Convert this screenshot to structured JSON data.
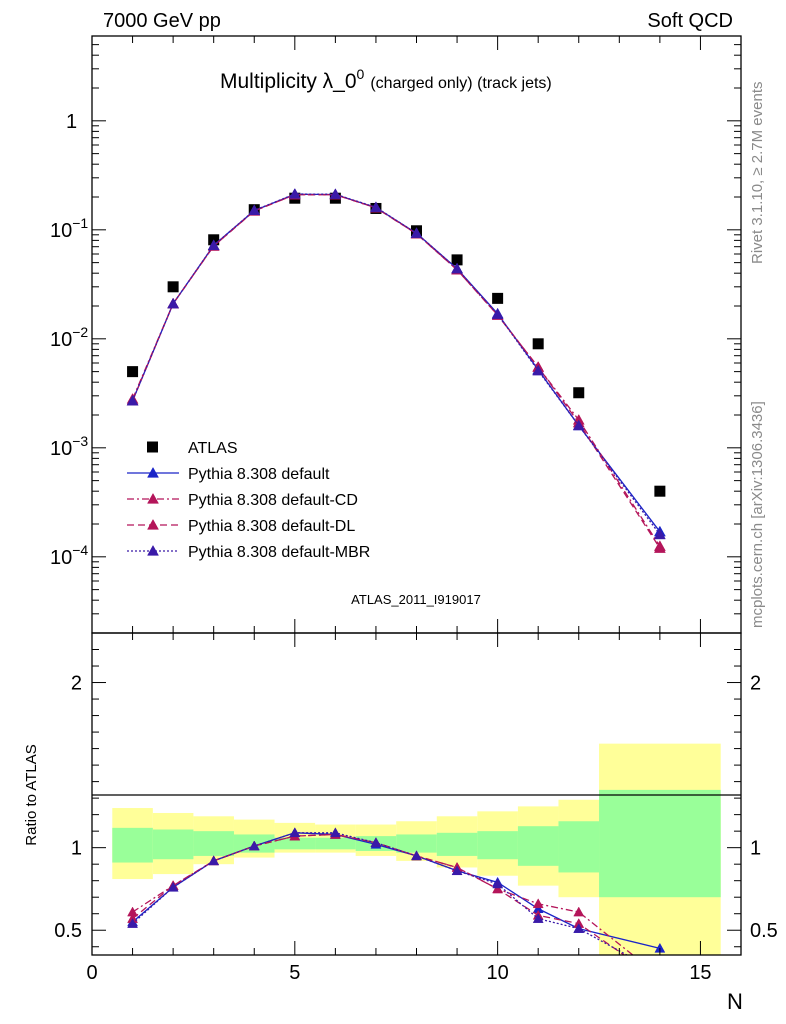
{
  "header": {
    "energy_label": "7000 GeV pp",
    "process_label": "Soft QCD"
  },
  "side": {
    "rivet_label": "Rivet 3.1.10, ≥ 2.7M events",
    "source_label": "mcplots.cern.ch [arXiv:1306.3436]"
  },
  "colors": {
    "data": "#000000",
    "default": "#1a24c8",
    "cd": "#b4155a",
    "dl": "#b4155a",
    "mbr": "#3a1aa8",
    "band_yellow": "#ffff99",
    "band_green": "#99ff99"
  },
  "chart_data": [
    {
      "type": "scatter",
      "title": "Multiplicity λ_0",
      "title_superscript": "0",
      "title_suffix": "(charged only) (track jets)",
      "analysis_label": "ATLAS_2011_I919017",
      "xlim": [
        0,
        16
      ],
      "ylim": [
        2e-05,
        6
      ],
      "yscale": "log",
      "y_ticks": [
        {
          "value": 0.0001,
          "base": "10",
          "exp": "−4"
        },
        {
          "value": 0.001,
          "base": "10",
          "exp": "−3"
        },
        {
          "value": 0.01,
          "base": "10",
          "exp": "−2"
        },
        {
          "value": 0.1,
          "base": "10",
          "exp": "−1"
        },
        {
          "value": 1,
          "base": "1",
          "exp": ""
        }
      ],
      "legend_position": "bottom-left",
      "series": [
        {
          "name": "ATLAS",
          "style": "data",
          "x": [
            1,
            2,
            3,
            4,
            5,
            6,
            7,
            8,
            9,
            10,
            11,
            12,
            14
          ],
          "y": [
            0.005,
            0.03,
            0.081,
            0.153,
            0.195,
            0.195,
            0.157,
            0.098,
            0.053,
            0.0235,
            0.009,
            0.0032,
            0.0004
          ]
        },
        {
          "name": "Pythia 8.308 default",
          "style": "default",
          "x": [
            1,
            2,
            3,
            4,
            5,
            6,
            7,
            8,
            9,
            10,
            11,
            12,
            14
          ],
          "y": [
            0.0027,
            0.021,
            0.072,
            0.15,
            0.212,
            0.211,
            0.16,
            0.093,
            0.044,
            0.017,
            0.0052,
            0.0016,
            0.00017
          ]
        },
        {
          "name": "Pythia 8.308 default-CD",
          "style": "cd",
          "x": [
            1,
            2,
            3,
            4,
            5,
            6,
            7,
            8,
            9,
            10,
            11,
            12,
            14
          ],
          "y": [
            0.0028,
            0.021,
            0.071,
            0.149,
            0.21,
            0.21,
            0.159,
            0.092,
            0.043,
            0.0165,
            0.0055,
            0.0018,
            0.000125
          ]
        },
        {
          "name": "Pythia 8.308 default-DL",
          "style": "dl",
          "x": [
            1,
            2,
            3,
            4,
            5,
            6,
            7,
            8,
            9,
            10,
            11,
            12,
            14
          ],
          "y": [
            0.0027,
            0.021,
            0.071,
            0.149,
            0.21,
            0.21,
            0.159,
            0.092,
            0.043,
            0.0165,
            0.0055,
            0.0017,
            0.00012
          ]
        },
        {
          "name": "Pythia 8.308 default-MBR",
          "style": "mbr",
          "x": [
            1,
            2,
            3,
            4,
            5,
            6,
            7,
            8,
            9,
            10,
            11,
            12,
            14
          ],
          "y": [
            0.0027,
            0.021,
            0.072,
            0.151,
            0.213,
            0.212,
            0.161,
            0.093,
            0.044,
            0.0168,
            0.0051,
            0.0016,
            0.00016
          ]
        }
      ]
    },
    {
      "type": "line",
      "ylabel": "Ratio to ATLAS",
      "xlabel": "N",
      "xlim": [
        0,
        16
      ],
      "ylim": [
        0.35,
        2.3
      ],
      "x_ticks": [
        0,
        5,
        10,
        15
      ],
      "y_ticks": [
        0.5,
        1,
        2
      ],
      "reference": 1,
      "bands": {
        "edges": [
          0.5,
          1.5,
          2.5,
          3.5,
          4.5,
          5.5,
          6.5,
          7.5,
          8.5,
          9.5,
          10.5,
          11.5,
          12.5,
          15.5
        ],
        "yellow": [
          [
            0.81,
            1.24
          ],
          [
            0.84,
            1.21
          ],
          [
            0.9,
            1.19
          ],
          [
            0.94,
            1.17
          ],
          [
            0.97,
            1.15
          ],
          [
            0.97,
            1.14
          ],
          [
            0.95,
            1.14
          ],
          [
            0.92,
            1.16
          ],
          [
            0.88,
            1.19
          ],
          [
            0.83,
            1.22
          ],
          [
            0.77,
            1.25
          ],
          [
            0.7,
            1.29
          ],
          [
            0.3,
            1.63
          ]
        ],
        "green": [
          [
            0.91,
            1.12
          ],
          [
            0.93,
            1.11
          ],
          [
            0.95,
            1.1
          ],
          [
            0.97,
            1.08
          ],
          [
            0.99,
            1.06
          ],
          [
            0.99,
            1.06
          ],
          [
            0.98,
            1.07
          ],
          [
            0.97,
            1.08
          ],
          [
            0.95,
            1.09
          ],
          [
            0.93,
            1.1
          ],
          [
            0.89,
            1.13
          ],
          [
            0.85,
            1.16
          ],
          [
            0.7,
            1.35
          ]
        ]
      },
      "series": [
        {
          "name": "Pythia 8.308 default",
          "style": "default",
          "x": [
            1,
            2,
            3,
            4,
            5,
            6,
            7,
            8,
            9,
            10,
            11,
            12,
            14
          ],
          "y": [
            0.55,
            0.76,
            0.92,
            1.01,
            1.09,
            1.08,
            1.02,
            0.95,
            0.86,
            0.79,
            0.63,
            0.51,
            0.39
          ]
        },
        {
          "name": "Pythia 8.308 default-CD",
          "style": "cd",
          "x": [
            1,
            2,
            3,
            4,
            5,
            6,
            7,
            8,
            9,
            10,
            11,
            12,
            14
          ],
          "y": [
            0.61,
            0.77,
            0.92,
            1.01,
            1.07,
            1.08,
            1.03,
            0.95,
            0.88,
            0.75,
            0.66,
            0.61,
            0.22
          ]
        },
        {
          "name": "Pythia 8.308 default-DL",
          "style": "dl",
          "x": [
            1,
            2,
            3,
            4,
            5,
            6,
            7,
            8,
            9,
            10,
            11,
            12,
            14
          ],
          "y": [
            0.57,
            0.77,
            0.92,
            1.01,
            1.07,
            1.08,
            1.03,
            0.95,
            0.88,
            0.75,
            0.59,
            0.54,
            0.2
          ]
        },
        {
          "name": "Pythia 8.308 default-MBR",
          "style": "mbr",
          "x": [
            1,
            2,
            3,
            4,
            5,
            6,
            7,
            8,
            9,
            10,
            11,
            12,
            14
          ],
          "y": [
            0.54,
            0.76,
            0.92,
            1.01,
            1.09,
            1.09,
            1.03,
            0.95,
            0.86,
            0.78,
            0.57,
            0.51,
            0.24
          ]
        }
      ]
    }
  ]
}
